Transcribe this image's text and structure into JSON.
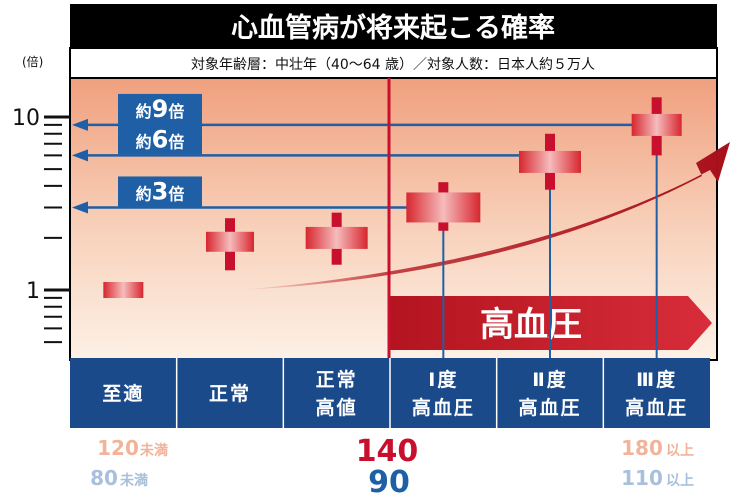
{
  "title": "心血管病が将来起こる確率",
  "subtitle": "対象年齢層：中壮年（40〜64 歳）／対象人数：日本人約５万人",
  "y_unit": "(倍)",
  "hypertension_label": "高血圧",
  "colors": {
    "title_bg": "#000000",
    "blue": "#1f5fa6",
    "red": "#c8102e",
    "bar_bg": "#1b4a8a",
    "systolic_side": "#f1b49a",
    "diastolic_side": "#a8c0dc",
    "threshold_systolic": "#c8102e",
    "threshold_diastolic": "#1f5fa6"
  },
  "badges": [
    {
      "prefix": "約",
      "number": "9",
      "suffix": "倍",
      "value": 9
    },
    {
      "prefix": "約",
      "number": "6",
      "suffix": "倍",
      "value": 6
    },
    {
      "prefix": "約",
      "number": "3",
      "suffix": "倍",
      "value": 3
    }
  ],
  "thresholds": {
    "left_systolic": "120",
    "left_diastolic": "80",
    "left_suffix": "未満",
    "center_systolic": "140",
    "center_diastolic": "90",
    "right_systolic": "180",
    "right_diastolic": "110",
    "right_suffix": "以上"
  },
  "chart_data": {
    "type": "scatter",
    "title": "心血管病が将来起こる確率",
    "subtitle": "対象年齢層：中壮年（40〜64 歳）／対象人数：日本人約５万人",
    "ylabel": "(倍)",
    "yscale": "log",
    "ylim": [
      0.4,
      16
    ],
    "yticks": [
      1,
      10
    ],
    "ytick_labels": [
      "1",
      "10"
    ],
    "categories": [
      [
        "至適"
      ],
      [
        "正常"
      ],
      [
        "正常",
        "高値"
      ],
      [
        "Ⅰ度",
        "高血圧"
      ],
      [
        "Ⅱ度",
        "高血圧"
      ],
      [
        "Ⅲ度",
        "高血圧"
      ]
    ],
    "values": [
      1.0,
      1.9,
      2.0,
      3.0,
      5.5,
      9.0
    ],
    "ci_low": [
      1.0,
      1.3,
      1.4,
      2.2,
      3.8,
      6.0
    ],
    "ci_high": [
      1.0,
      2.6,
      2.8,
      4.2,
      8.0,
      13.0
    ],
    "reference_lines": [
      9,
      6,
      3
    ],
    "annotations": [
      "約9倍",
      "約6倍",
      "約3倍",
      "高血圧"
    ],
    "grid": false,
    "legend": "none"
  }
}
